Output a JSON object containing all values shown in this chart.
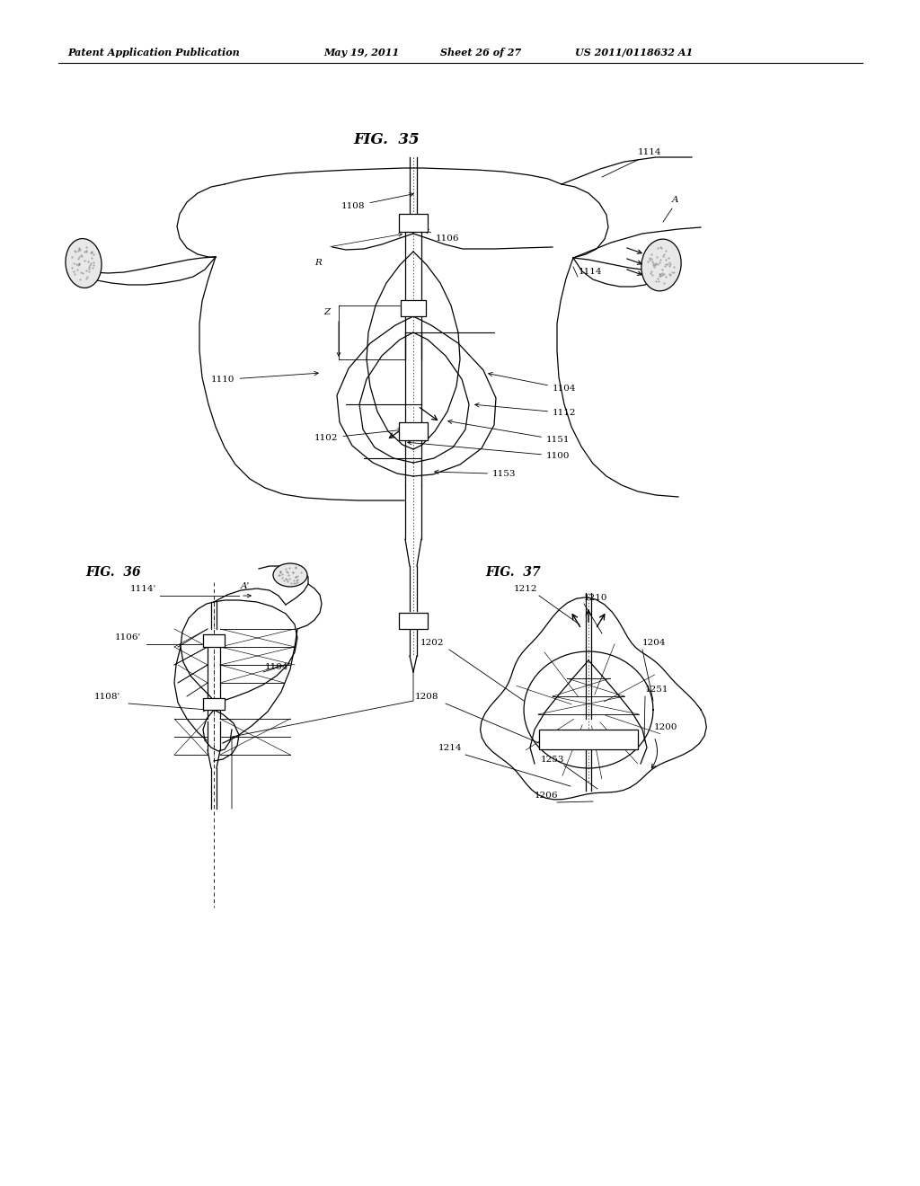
{
  "bg_color": "#ffffff",
  "header_text": "Patent Application Publication",
  "header_date": "May 19, 2011",
  "header_sheet": "Sheet 26 of 27",
  "header_patent": "US 2011/0118632 A1",
  "fig35_title": "FIG.  35",
  "fig36_title": "FIG.  36",
  "fig37_title": "FIG.  37",
  "lw": 0.9,
  "fs_label": 7.5,
  "black": "#000000"
}
